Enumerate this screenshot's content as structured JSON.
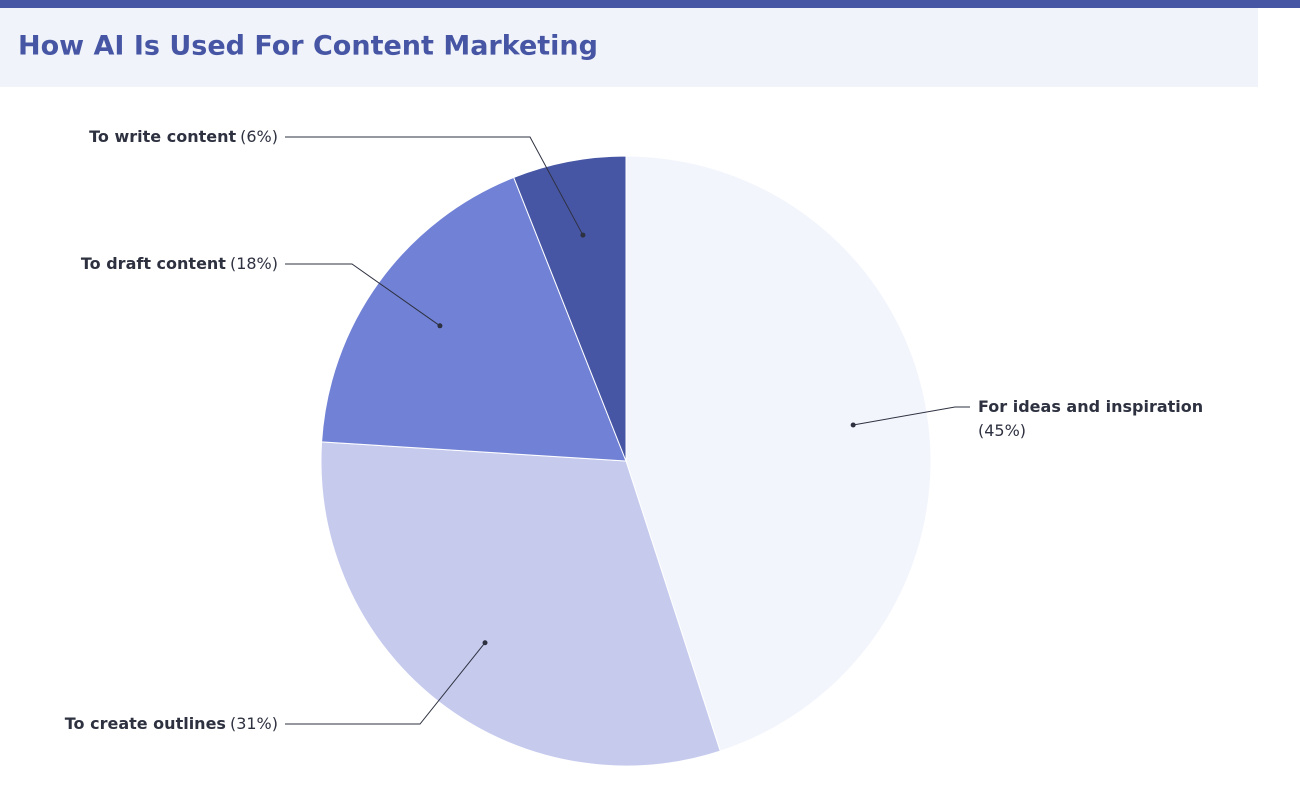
{
  "chart_data": {
    "type": "pie",
    "title": "How AI Is Used For Content Marketing",
    "categories": [
      "For ideas and inspiration",
      "To create outlines",
      "To draft content",
      "To write content"
    ],
    "values": [
      45,
      31,
      18,
      6
    ],
    "value_labels": [
      "(45%)",
      "(31%)",
      "(18%)",
      "(6%)"
    ],
    "colors": [
      "#f2f5fc",
      "#c6cbee",
      "#7182d6",
      "#4656a4"
    ]
  }
}
